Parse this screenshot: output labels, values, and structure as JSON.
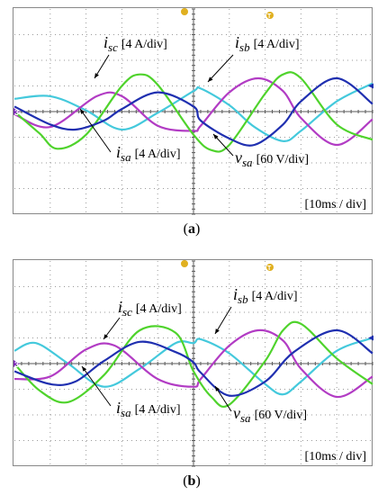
{
  "figure": {
    "panels": [
      {
        "label": "a",
        "time_label": "[10ms / div]"
      },
      {
        "label": "b",
        "time_label": "[10ms / div]"
      }
    ]
  },
  "channel_markers": {
    "left": "3",
    "top": "T"
  },
  "colors": {
    "isa": "#1f2fb0",
    "isb": "#44c9dc",
    "isc": "#b23cc4",
    "vsa": "#4fd32c",
    "grid": "#9a9a9a",
    "marker_left": "#7a27b5",
    "marker_top": "#e0b020",
    "axis": "#5a5a5a"
  },
  "chart_data": [
    {
      "type": "line",
      "panel": "a",
      "x_unit": "ms",
      "xlim": [
        -50,
        50
      ],
      "ylim": [
        -4,
        4
      ],
      "xdivs": 10,
      "ydivs": 8,
      "grid": true,
      "series": [
        {
          "name": "isa",
          "label_main": "i",
          "label_sub": "sa",
          "label_scale": "[4 A/div]",
          "color": "#1f2fb0",
          "x": [
            -50,
            -40,
            -33,
            -25,
            -20,
            -10,
            0,
            2,
            10,
            17,
            25,
            30,
            40,
            50
          ],
          "y": [
            0.2,
            -0.5,
            -0.7,
            -0.35,
            0.1,
            0.75,
            0.2,
            -0.35,
            -1.05,
            -1.3,
            -0.5,
            0.4,
            1.3,
            0.3
          ]
        },
        {
          "name": "isb",
          "label_main": "i",
          "label_sub": "sb",
          "label_scale": "[4 A/div]",
          "color": "#44c9dc",
          "x": [
            -50,
            -40,
            -30,
            -20,
            -10,
            0,
            2,
            10,
            17,
            25,
            30,
            40,
            50
          ],
          "y": [
            0.5,
            0.6,
            0.05,
            -0.7,
            -0.05,
            0.8,
            0.9,
            0.25,
            -0.6,
            -1.15,
            -0.75,
            0.4,
            1.1
          ]
        },
        {
          "name": "isc",
          "label_main": "i",
          "label_sub": "sc",
          "label_scale": "[4 A/div]",
          "color": "#b23cc4",
          "x": [
            -50,
            -40,
            -27,
            -20,
            -10,
            0,
            2,
            10,
            18,
            25,
            30,
            40,
            50
          ],
          "y": [
            -0.1,
            -0.6,
            0.6,
            0.6,
            -0.55,
            -0.75,
            -0.55,
            0.75,
            1.3,
            0.8,
            -0.25,
            -1.3,
            -0.3
          ]
        },
        {
          "name": "vsa",
          "label_main": "v",
          "label_sub": "sa",
          "label_scale": "[60 V/div]",
          "color": "#4fd32c",
          "x": [
            -50,
            -43,
            -38,
            -30,
            -20,
            -15,
            -10,
            0,
            5,
            10,
            20,
            25,
            30,
            40,
            50
          ],
          "y": [
            0,
            -0.85,
            -1.45,
            -0.9,
            1.0,
            1.45,
            1.05,
            -0.9,
            -1.5,
            -1.3,
            0.7,
            1.45,
            1.3,
            -0.5,
            -1.1
          ]
        }
      ]
    },
    {
      "type": "line",
      "panel": "b",
      "x_unit": "ms",
      "xlim": [
        -50,
        50
      ],
      "ylim": [
        -4,
        4
      ],
      "xdivs": 10,
      "ydivs": 8,
      "grid": true,
      "series": [
        {
          "name": "isa",
          "label_main": "i",
          "label_sub": "sa",
          "label_scale": "[4 A/div]",
          "color": "#1f2fb0",
          "x": [
            -50,
            -40,
            -33,
            -25,
            -15,
            -5,
            0,
            2,
            10,
            20,
            28,
            40,
            50
          ],
          "y": [
            -0.3,
            -0.8,
            -0.7,
            0.1,
            0.85,
            0.45,
            0.05,
            -0.35,
            -1.25,
            -0.7,
            0.45,
            1.3,
            0.4
          ]
        },
        {
          "name": "isb",
          "label_main": "i",
          "label_sub": "sb",
          "label_scale": "[4 A/div]",
          "color": "#44c9dc",
          "x": [
            -50,
            -44,
            -35,
            -25,
            -15,
            -5,
            0,
            2,
            10,
            20,
            25,
            30,
            40,
            50
          ],
          "y": [
            0.5,
            0.8,
            0.0,
            -0.9,
            -0.2,
            0.8,
            0.8,
            0.95,
            0.4,
            -0.8,
            -1.2,
            -0.7,
            0.5,
            1.0
          ]
        },
        {
          "name": "isc",
          "label_main": "i",
          "label_sub": "sc",
          "label_scale": "[4 A/div]",
          "color": "#b23cc4",
          "x": [
            -50,
            -40,
            -30,
            -22,
            -10,
            0,
            2,
            10,
            18,
            25,
            30,
            40,
            50
          ],
          "y": [
            -0.6,
            -0.5,
            0.55,
            0.7,
            -0.6,
            -0.9,
            -0.6,
            0.7,
            1.3,
            0.9,
            -0.2,
            -1.3,
            -0.5
          ]
        },
        {
          "name": "vsa",
          "label_main": "v",
          "label_sub": "sa",
          "label_scale": "[60 V/div]",
          "color": "#4fd32c",
          "x": [
            -50,
            -43,
            -35,
            -25,
            -15,
            -5,
            0,
            5,
            10,
            20,
            25,
            30,
            40,
            50
          ],
          "y": [
            0,
            -1.05,
            -1.5,
            -0.45,
            1.3,
            1.2,
            -0.3,
            -1.3,
            -1.6,
            0.1,
            1.3,
            1.55,
            0.2,
            -0.8
          ]
        }
      ]
    }
  ]
}
